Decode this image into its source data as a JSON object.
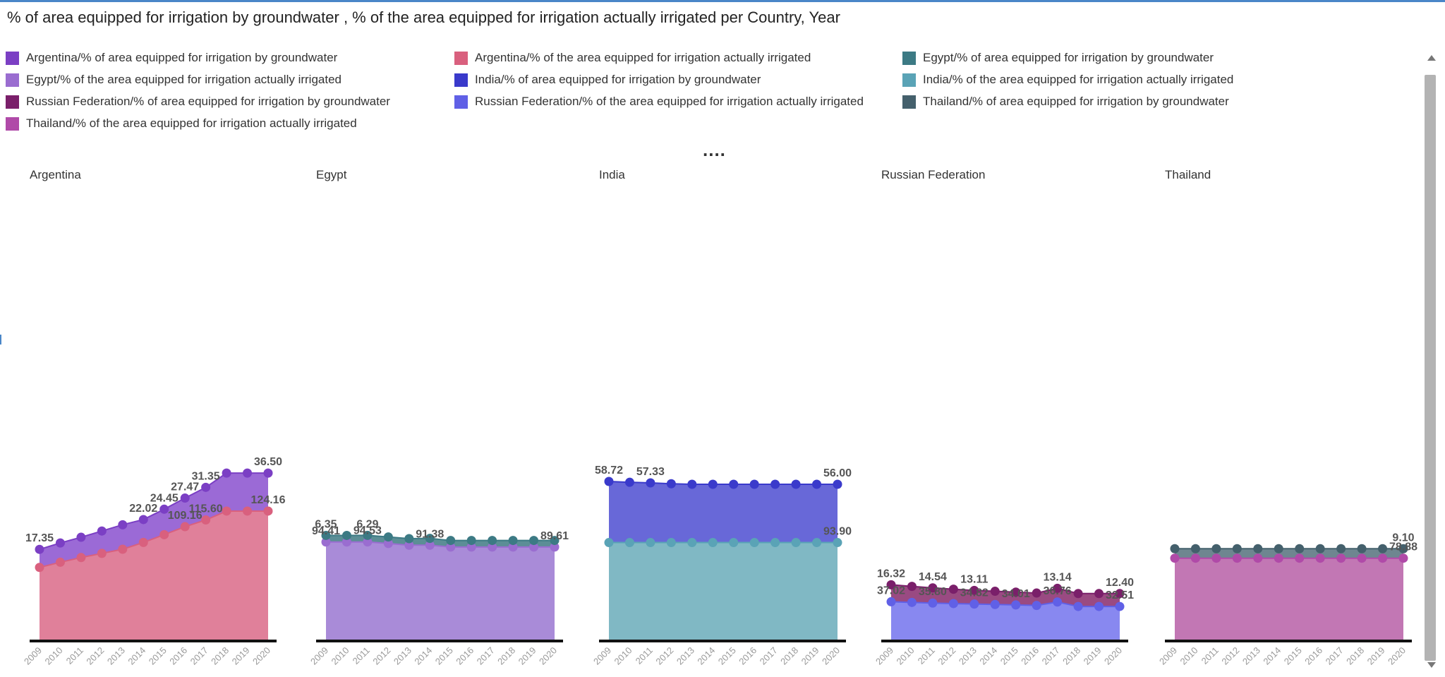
{
  "title": "% of area equipped for irrigation by groundwater , % of the area equipped for irrigation actually irrigated per Country, Year",
  "legend": [
    {
      "label": "Argentina/% of area equipped for irrigation by groundwater",
      "color": "#7b3fc4"
    },
    {
      "label": "Argentina/% of the area equipped for irrigation actually irrigated",
      "color": "#d9607e"
    },
    {
      "label": "Egypt/% of area equipped for irrigation by groundwater",
      "color": "#3c7a84"
    },
    {
      "label": "Egypt/% of the area equipped for irrigation actually irrigated",
      "color": "#9a6dd0"
    },
    {
      "label": "India/% of area equipped for irrigation by groundwater",
      "color": "#3a3acb"
    },
    {
      "label": "India/% of the area equipped for irrigation actually irrigated",
      "color": "#5aa3b6"
    },
    {
      "label": "Russian Federation/% of area equipped for irrigation by groundwater",
      "color": "#7a1f6a"
    },
    {
      "label": "Russian Federation/% of the area equipped for irrigation actually irrigated",
      "color": "#6060e6"
    },
    {
      "label": "Thailand/% of area equipped for irrigation by groundwater",
      "color": "#44606c"
    },
    {
      "label": "Thailand/% of the area equipped for irrigation actually irrigated",
      "color": "#b04aa8"
    }
  ],
  "chart_data": {
    "type": "area",
    "stacked": true,
    "x": [
      "2009",
      "2010",
      "2011",
      "2012",
      "2013",
      "2014",
      "2015",
      "2016",
      "2017",
      "2018",
      "2019",
      "2020"
    ],
    "panels": [
      {
        "name": "Argentina",
        "series": [
          {
            "name": "Argentina/% of the area equipped for irrigation actually irrigated",
            "color": "#d9607e",
            "fill": "#e0809a",
            "values": [
              70.0,
              75.0,
              79.5,
              83.5,
              87.5,
              94.0,
              101.5,
              109.16,
              115.6,
              124.16,
              124.16,
              124.16
            ],
            "labels": {
              "7": "109.16",
              "8": "115.60",
              "11": "124.16"
            }
          },
          {
            "name": "Argentina/% of area equipped for irrigation by groundwater",
            "color": "#7b3fc4",
            "fill": "#9b6ad6",
            "values": [
              17.35,
              18.5,
              19.5,
              21.5,
              23.5,
              22.02,
              24.45,
              27.47,
              31.35,
              36.5,
              36.5,
              36.5
            ],
            "labels": {
              "0": "17.35",
              "5": "22.02",
              "6": "24.45",
              "7": "27.47",
              "8": "31.35",
              "11": "36.50"
            }
          }
        ]
      },
      {
        "name": "Egypt",
        "series": [
          {
            "name": "Egypt/% of the area equipped for irrigation actually irrigated",
            "color": "#9a6dd0",
            "fill": "#a98bd8",
            "values": [
              94.41,
              94.41,
              94.53,
              93.0,
              91.38,
              91.38,
              89.61,
              89.61,
              89.61,
              89.61,
              89.61,
              89.61
            ],
            "labels": {
              "0": "94.41",
              "2": "94.53",
              "5": "91.38",
              "11": "89.61"
            }
          },
          {
            "name": "Egypt/% of area equipped for irrigation by groundwater",
            "color": "#3c7a84",
            "fill": "#5c8e96",
            "values": [
              6.35,
              6.35,
              6.29,
              6.29,
              6.3,
              6.5,
              6.3,
              6.3,
              6.3,
              6.3,
              6.3,
              6.3
            ],
            "labels": {
              "0": "6.35",
              "2": "6.29"
            }
          }
        ]
      },
      {
        "name": "India",
        "series": [
          {
            "name": "India/% of the area equipped for irrigation actually irrigated",
            "color": "#5aa3b6",
            "fill": "#80b8c4",
            "values": [
              93.9,
              93.9,
              93.9,
              93.9,
              93.9,
              93.9,
              93.9,
              93.9,
              93.9,
              93.9,
              93.9,
              93.9
            ],
            "labels": {
              "11": "93.90"
            }
          },
          {
            "name": "India/% of area equipped for irrigation by groundwater",
            "color": "#3a3acb",
            "fill": "#6868d8",
            "values": [
              58.72,
              57.9,
              57.33,
              56.5,
              56.0,
              56.0,
              56.0,
              56.0,
              56.0,
              56.0,
              56.0,
              56.0
            ],
            "labels": {
              "0": "58.72",
              "2": "57.33",
              "11": "56.00"
            }
          }
        ]
      },
      {
        "name": "Russian Federation",
        "series": [
          {
            "name": "Russian Federation/% of the area equipped for irrigation actually irrigated",
            "color": "#6060e6",
            "fill": "#8888f0",
            "values": [
              37.02,
              36.4,
              35.8,
              35.3,
              34.82,
              34.4,
              34.01,
              33.5,
              36.76,
              32.51,
              32.51,
              32.51
            ],
            "labels": {
              "0": "37.02",
              "2": "35.80",
              "4": "34.82",
              "6": "34.01",
              "8": "36.76",
              "11": "32.51"
            }
          },
          {
            "name": "Russian Federation/% of area equipped for irrigation by groundwater",
            "color": "#7a1f6a",
            "fill": "#9a4a82",
            "values": [
              16.32,
              15.4,
              14.54,
              13.8,
              13.11,
              12.7,
              12.3,
              11.9,
              13.14,
              12.4,
              12.4,
              12.4
            ],
            "labels": {
              "0": "16.32",
              "2": "14.54",
              "4": "13.11",
              "8": "13.14",
              "11": "12.40"
            }
          }
        ]
      },
      {
        "name": "Thailand",
        "series": [
          {
            "name": "Thailand/% of the area equipped for irrigation actually irrigated",
            "color": "#b04aa8",
            "fill": "#c277b4",
            "values": [
              78.88,
              78.88,
              78.88,
              78.88,
              78.88,
              78.88,
              78.88,
              78.88,
              78.88,
              78.88,
              78.88,
              78.88
            ],
            "labels": {
              "11": "78.88"
            }
          },
          {
            "name": "Thailand/% of area equipped for irrigation by groundwater",
            "color": "#44606c",
            "fill": "#6e8690",
            "values": [
              9.1,
              9.1,
              9.1,
              9.1,
              9.1,
              9.1,
              9.1,
              9.1,
              9.1,
              9.1,
              9.1,
              9.1
            ],
            "labels": {
              "11": "9.10"
            }
          }
        ]
      }
    ]
  }
}
